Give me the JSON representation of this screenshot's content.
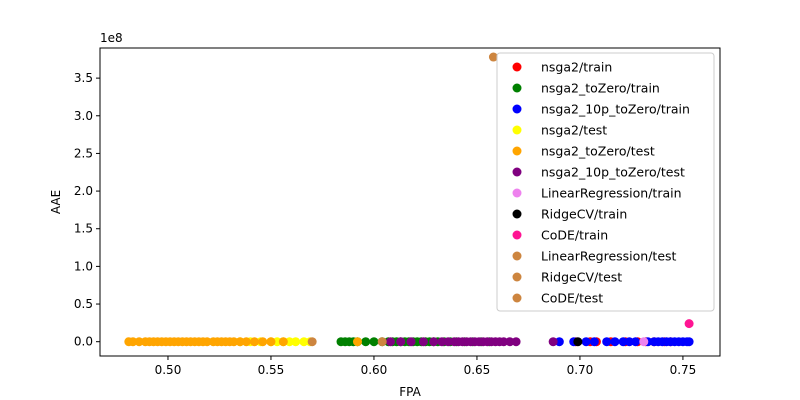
{
  "chart_data": {
    "type": "scatter",
    "xlabel": "FPA",
    "ylabel": "AAE",
    "y_offset_text": "1e8",
    "xlim": [
      0.467,
      0.768
    ],
    "ylim": [
      -0.19,
      3.9
    ],
    "xticks": [
      0.5,
      0.55,
      0.6,
      0.65,
      0.7,
      0.75
    ],
    "xtick_labels": [
      "0.50",
      "0.55",
      "0.60",
      "0.65",
      "0.70",
      "0.75"
    ],
    "yticks": [
      0.0,
      0.5,
      1.0,
      1.5,
      2.0,
      2.5,
      3.0,
      3.5
    ],
    "ytick_labels": [
      "0.0",
      "0.5",
      "1.0",
      "1.5",
      "2.0",
      "2.5",
      "3.0",
      "3.5"
    ],
    "legend_position": "upper-right",
    "series": [
      {
        "name": "nsga2/train",
        "color": "#ff0000",
        "x": [
          0.698,
          0.705,
          0.708,
          0.715,
          0.722,
          0.728,
          0.732,
          0.736,
          0.741,
          0.744
        ],
        "y": [
          0,
          0,
          0,
          0,
          0,
          0,
          0,
          0,
          0,
          0
        ]
      },
      {
        "name": "nsga2_toZero/train",
        "color": "#008000",
        "x": [
          0.584,
          0.586,
          0.588,
          0.59,
          0.592,
          0.596,
          0.6,
          0.604,
          0.607,
          0.609,
          0.611,
          0.613,
          0.615,
          0.617,
          0.619,
          0.621,
          0.623,
          0.625,
          0.627,
          0.629,
          0.631,
          0.634,
          0.637,
          0.64,
          0.644,
          0.648,
          0.652,
          0.656
        ],
        "y": [
          0,
          0,
          0,
          0,
          0,
          0,
          0,
          0,
          0,
          0,
          0,
          0,
          0,
          0,
          0,
          0,
          0,
          0,
          0,
          0,
          0,
          0,
          0,
          0,
          0,
          0,
          0,
          0
        ]
      },
      {
        "name": "nsga2_10p_toZero/train",
        "color": "#0000ff",
        "x": [
          0.69,
          0.697,
          0.703,
          0.707,
          0.713,
          0.717,
          0.721,
          0.724,
          0.727,
          0.733,
          0.736,
          0.738,
          0.74,
          0.742,
          0.744,
          0.746,
          0.748,
          0.75,
          0.752,
          0.753
        ],
        "y": [
          0,
          0,
          0,
          0,
          0,
          0,
          0,
          0,
          0,
          0,
          0,
          0,
          0,
          0,
          0,
          0,
          0,
          0,
          0,
          0
        ]
      },
      {
        "name": "nsga2/test",
        "color": "#ffff00",
        "x": [
          0.535,
          0.54,
          0.545,
          0.55,
          0.553,
          0.556,
          0.559,
          0.562,
          0.566,
          0.569
        ],
        "y": [
          0,
          0,
          0,
          0,
          0,
          0,
          0,
          0,
          0,
          0
        ]
      },
      {
        "name": "nsga2_toZero/test",
        "color": "#ffa500",
        "x": [
          0.481,
          0.483,
          0.486,
          0.489,
          0.491,
          0.493,
          0.495,
          0.497,
          0.499,
          0.501,
          0.503,
          0.505,
          0.507,
          0.509,
          0.511,
          0.513,
          0.515,
          0.517,
          0.519,
          0.522,
          0.524,
          0.526,
          0.528,
          0.53,
          0.532,
          0.535,
          0.538,
          0.542,
          0.546,
          0.55,
          0.556,
          0.592
        ],
        "y": [
          0,
          0,
          0,
          0,
          0,
          0,
          0,
          0,
          0,
          0,
          0,
          0,
          0,
          0,
          0,
          0,
          0,
          0,
          0,
          0,
          0,
          0,
          0,
          0,
          0,
          0,
          0,
          0,
          0,
          0,
          0,
          0
        ]
      },
      {
        "name": "nsga2_10p_toZero/test",
        "color": "#800080",
        "x": [
          0.608,
          0.613,
          0.618,
          0.624,
          0.629,
          0.633,
          0.636,
          0.639,
          0.641,
          0.643,
          0.645,
          0.647,
          0.649,
          0.651,
          0.653,
          0.655,
          0.657,
          0.659,
          0.661,
          0.663,
          0.666,
          0.669,
          0.687
        ],
        "y": [
          0,
          0,
          0,
          0,
          0,
          0,
          0,
          0,
          0,
          0,
          0,
          0,
          0,
          0,
          0,
          0,
          0,
          0,
          0,
          0,
          0,
          0,
          0
        ]
      },
      {
        "name": "LinearRegression/train",
        "color": "#ee82ee",
        "x": [
          0.731
        ],
        "y": [
          0
        ]
      },
      {
        "name": "RidgeCV/train",
        "color": "#000000",
        "x": [
          0.699
        ],
        "y": [
          0
        ]
      },
      {
        "name": "CoDE/train",
        "color": "#ff1493",
        "x": [
          0.753
        ],
        "y": [
          0.24
        ]
      },
      {
        "name": "LinearRegression/test",
        "color": "#cd853f",
        "x": [
          0.57
        ],
        "y": [
          0
        ]
      },
      {
        "name": "RidgeCV/test",
        "color": "#cd853f",
        "x": [
          0.604
        ],
        "y": [
          0
        ]
      },
      {
        "name": "CoDE/test",
        "color": "#cd853f",
        "x": [
          0.658
        ],
        "y": [
          3.78
        ]
      }
    ]
  }
}
